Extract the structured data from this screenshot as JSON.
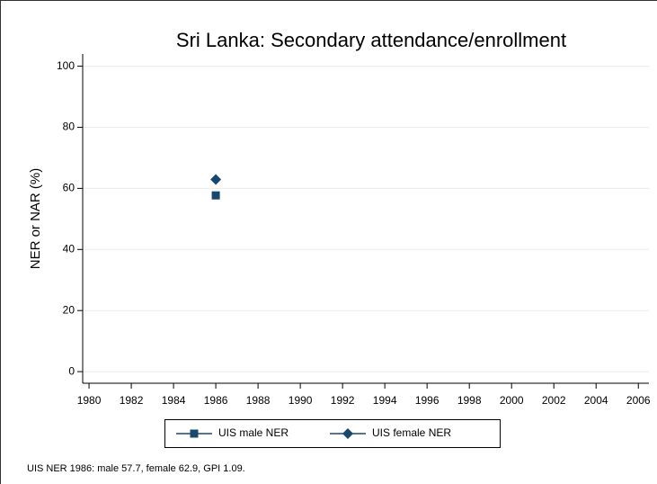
{
  "chart_data": {
    "type": "scatter",
    "title": "Sri Lanka: Secondary attendance/enrollment",
    "ylabel": "NER or NAR (%)",
    "x": [
      1986
    ],
    "series": [
      {
        "name": "UIS male NER",
        "color": "#1a476f",
        "marker": "square",
        "values": [
          57.7
        ]
      },
      {
        "name": "UIS female NER",
        "color": "#1a476f",
        "marker": "diamond",
        "values": [
          62.9
        ]
      }
    ],
    "xlim": [
      1979.7,
      2006.5
    ],
    "xticks": [
      1980,
      1982,
      1984,
      1986,
      1988,
      1990,
      1992,
      1994,
      1996,
      1998,
      2000,
      2002,
      2004,
      2006
    ],
    "ylim": [
      -3.8,
      104
    ],
    "yticks": [
      0,
      20,
      40,
      60,
      80,
      100
    ],
    "grid": true,
    "legend": "bottom",
    "note": "UIS NER 1986: male 57.7, female 62.9, GPI 1.09."
  }
}
